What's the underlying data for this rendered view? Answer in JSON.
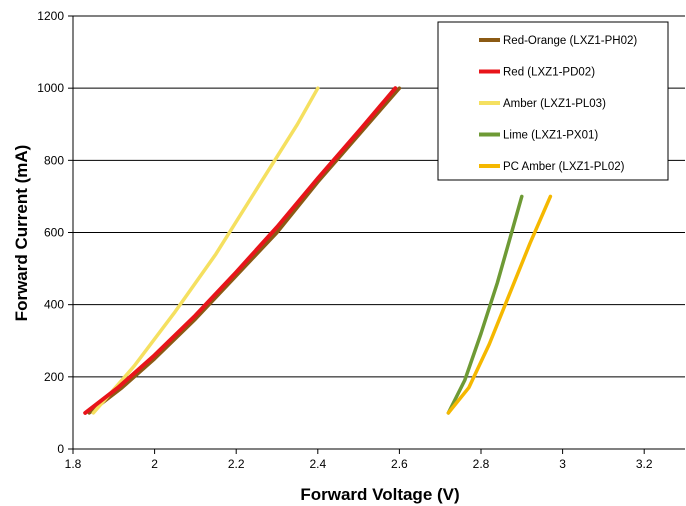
{
  "chart_data": {
    "type": "line",
    "title": "",
    "xlabel": "Forward Voltage (V)",
    "ylabel": "Forward Current (mA)",
    "xlim": [
      1.8,
      3.3
    ],
    "ylim": [
      0,
      1200
    ],
    "xticks": [
      1.8,
      2.0,
      2.2,
      2.4,
      2.6,
      2.8,
      3.0,
      3.2
    ],
    "xtick_labels": [
      "1.8",
      "2",
      "2.2",
      "2.4",
      "2.6",
      "2.8",
      "3",
      "3.2"
    ],
    "yticks": [
      0,
      200,
      400,
      600,
      800,
      1000,
      1200
    ],
    "ytick_labels": [
      "0",
      "200",
      "400",
      "600",
      "800",
      "1000",
      "1200"
    ],
    "grid": "horizontal",
    "legend_position": "top-right",
    "series": [
      {
        "name": "Red-Orange (LXZ1-PH02)",
        "color": "#8B5A14",
        "x": [
          1.84,
          1.92,
          2.0,
          2.1,
          2.2,
          2.3,
          2.4,
          2.5,
          2.6
        ],
        "y": [
          100,
          170,
          250,
          360,
          480,
          600,
          740,
          870,
          1000
        ]
      },
      {
        "name": "Red (LXZ1-PD02)",
        "color": "#E8141A",
        "x": [
          1.83,
          1.91,
          2.0,
          2.1,
          2.2,
          2.3,
          2.4,
          2.5,
          2.59
        ],
        "y": [
          100,
          170,
          260,
          370,
          490,
          615,
          750,
          880,
          1000
        ]
      },
      {
        "name": "Amber (LXZ1-PL03)",
        "color": "#F5E060",
        "x": [
          1.85,
          1.95,
          2.05,
          2.15,
          2.25,
          2.35,
          2.4
        ],
        "y": [
          100,
          230,
          380,
          540,
          720,
          900,
          1000
        ]
      },
      {
        "name": "Lime (LXZ1-PX01)",
        "color": "#6E9A35",
        "x": [
          2.72,
          2.76,
          2.8,
          2.84,
          2.87,
          2.9
        ],
        "y": [
          100,
          190,
          320,
          460,
          580,
          700
        ]
      },
      {
        "name": "PC Amber (LXZ1-PL02)",
        "color": "#F5B800",
        "x": [
          2.72,
          2.77,
          2.82,
          2.87,
          2.92,
          2.97
        ],
        "y": [
          100,
          170,
          290,
          430,
          570,
          700
        ]
      }
    ]
  }
}
